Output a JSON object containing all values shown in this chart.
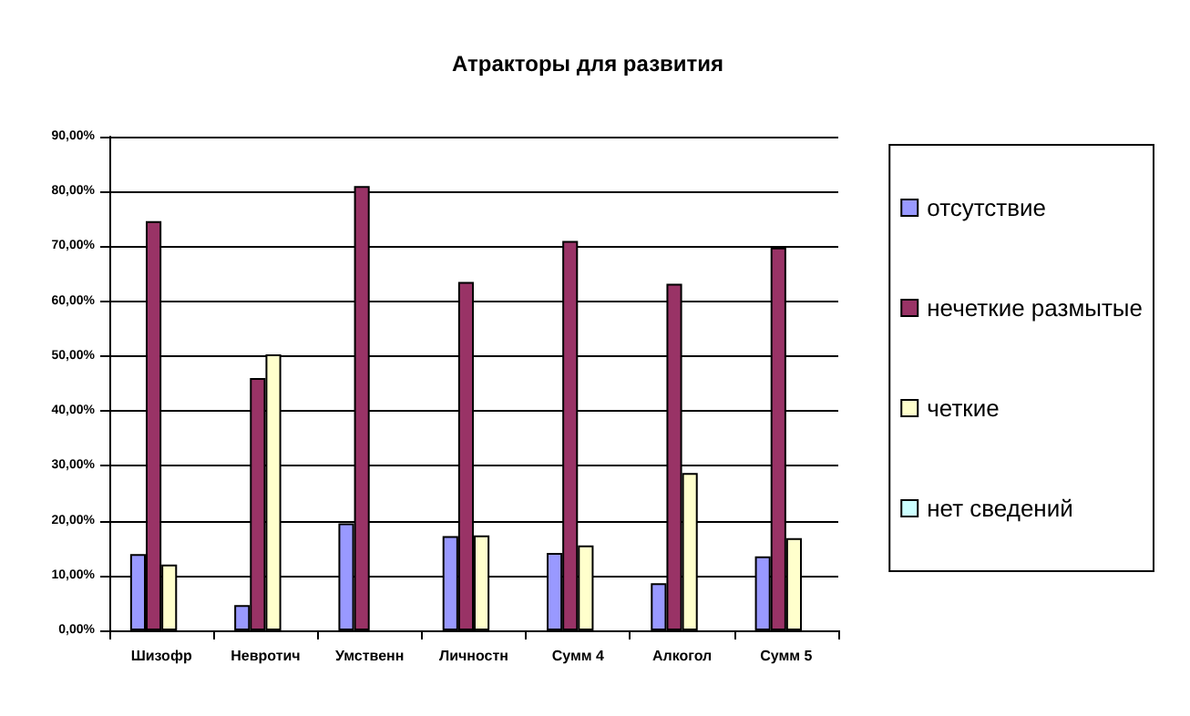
{
  "chart_data": {
    "type": "bar",
    "title": "Атракторы для развития",
    "categories": [
      "Шизофр",
      "Невротич",
      "Умственн",
      "Личностн",
      "Сумм 4",
      "Алкогол",
      "Сумм 5"
    ],
    "series": [
      {
        "name": "отсутствие",
        "color": "#9999ff",
        "values": [
          13.9,
          4.6,
          19.5,
          17.2,
          14.1,
          8.6,
          13.5
        ]
      },
      {
        "name": "нечеткие размытые",
        "color": "#993366",
        "values": [
          74.6,
          46,
          81,
          63.5,
          71,
          63.2,
          69.8
        ]
      },
      {
        "name": "четкие",
        "color": "#ffffcc",
        "values": [
          12,
          50.3,
          null,
          17.3,
          15.5,
          28.7,
          16.8
        ]
      },
      {
        "name": "нет сведений",
        "color": "#ccffff",
        "values": [
          null,
          null,
          null,
          null,
          null,
          null,
          null
        ]
      }
    ],
    "ylim": [
      0,
      90
    ],
    "yticks": [
      {
        "value": 0,
        "label": "0,00%"
      },
      {
        "value": 10,
        "label": "10,00%"
      },
      {
        "value": 20,
        "label": "20,00%"
      },
      {
        "value": 30,
        "label": "30,00%"
      },
      {
        "value": 40,
        "label": "40,00%"
      },
      {
        "value": 50,
        "label": "50,00%"
      },
      {
        "value": 60,
        "label": "60,00%"
      },
      {
        "value": 70,
        "label": "70,00%"
      },
      {
        "value": 80,
        "label": "80,00%"
      },
      {
        "value": 90,
        "label": "90,00%"
      }
    ],
    "grid": "y",
    "legend": "right"
  }
}
